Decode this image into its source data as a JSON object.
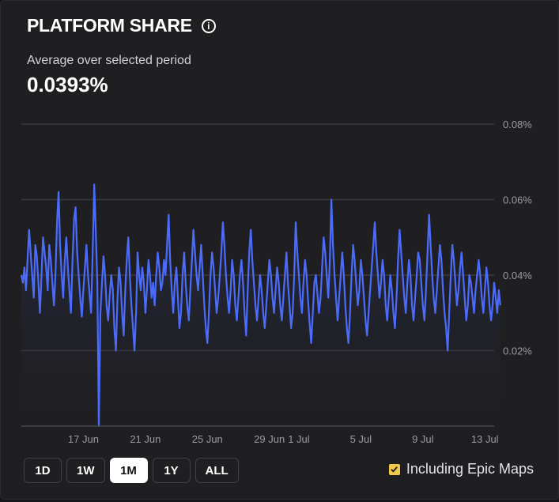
{
  "header": {
    "title": "PLATFORM SHARE",
    "info_icon": "info-icon"
  },
  "summary": {
    "label": "Average over selected period",
    "value": "0.0393%"
  },
  "colors": {
    "line": "#4b6bfb",
    "grid": "#3a3a40",
    "axis_text": "#9a9aa2",
    "accent": "#f2c94c"
  },
  "range_buttons": [
    {
      "label": "1D",
      "active": false
    },
    {
      "label": "1W",
      "active": false
    },
    {
      "label": "1M",
      "active": true
    },
    {
      "label": "1Y",
      "active": false
    },
    {
      "label": "ALL",
      "active": false
    }
  ],
  "epic_maps": {
    "label": "Including Epic Maps",
    "checked": true
  },
  "chart_data": {
    "type": "area",
    "title": "PLATFORM SHARE",
    "xlabel": "",
    "ylabel": "",
    "ylim": [
      0,
      0.08
    ],
    "y_ticks": [
      {
        "value": 0.08,
        "label": "0.08%"
      },
      {
        "value": 0.06,
        "label": "0.06%"
      },
      {
        "value": 0.04,
        "label": "0.04%"
      },
      {
        "value": 0.02,
        "label": "0.02%"
      }
    ],
    "xlim": [
      0,
      30.5
    ],
    "x_ticks": [
      {
        "value": 4.0,
        "label": "17 Jun"
      },
      {
        "value": 8.0,
        "label": "21 Jun"
      },
      {
        "value": 12.0,
        "label": "25 Jun"
      },
      {
        "value": 16.0,
        "label": "29 Jun"
      },
      {
        "value": 17.9,
        "label": "1 Jul"
      },
      {
        "value": 21.9,
        "label": "5 Jul"
      },
      {
        "value": 25.9,
        "label": "9 Jul"
      },
      {
        "value": 29.9,
        "label": "13 Jul"
      }
    ],
    "series": [
      {
        "name": "Platform share (%)",
        "x_step_days": 0.1,
        "values": [
          0.04,
          0.038,
          0.042,
          0.036,
          0.044,
          0.052,
          0.046,
          0.04,
          0.034,
          0.048,
          0.045,
          0.038,
          0.03,
          0.04,
          0.05,
          0.046,
          0.042,
          0.036,
          0.048,
          0.044,
          0.038,
          0.032,
          0.04,
          0.054,
          0.062,
          0.048,
          0.04,
          0.034,
          0.044,
          0.05,
          0.042,
          0.036,
          0.03,
          0.044,
          0.055,
          0.058,
          0.046,
          0.04,
          0.034,
          0.029,
          0.036,
          0.042,
          0.048,
          0.04,
          0.035,
          0.03,
          0.046,
          0.064,
          0.052,
          0.038,
          0.0,
          0.03,
          0.038,
          0.045,
          0.04,
          0.032,
          0.028,
          0.035,
          0.04,
          0.036,
          0.026,
          0.02,
          0.034,
          0.042,
          0.038,
          0.03,
          0.024,
          0.036,
          0.044,
          0.05,
          0.04,
          0.032,
          0.026,
          0.02,
          0.03,
          0.046,
          0.04,
          0.036,
          0.042,
          0.038,
          0.03,
          0.036,
          0.044,
          0.04,
          0.034,
          0.038,
          0.032,
          0.04,
          0.046,
          0.042,
          0.036,
          0.038,
          0.044,
          0.04,
          0.048,
          0.056,
          0.044,
          0.036,
          0.03,
          0.038,
          0.042,
          0.034,
          0.026,
          0.03,
          0.04,
          0.046,
          0.038,
          0.032,
          0.028,
          0.036,
          0.044,
          0.052,
          0.046,
          0.04,
          0.036,
          0.042,
          0.048,
          0.04,
          0.032,
          0.026,
          0.022,
          0.03,
          0.04,
          0.046,
          0.042,
          0.036,
          0.03,
          0.034,
          0.04,
          0.046,
          0.054,
          0.048,
          0.04,
          0.034,
          0.03,
          0.036,
          0.044,
          0.04,
          0.032,
          0.028,
          0.034,
          0.04,
          0.044,
          0.038,
          0.03,
          0.024,
          0.036,
          0.046,
          0.052,
          0.044,
          0.038,
          0.032,
          0.028,
          0.034,
          0.04,
          0.036,
          0.03,
          0.026,
          0.032,
          0.038,
          0.044,
          0.04,
          0.034,
          0.03,
          0.036,
          0.042,
          0.038,
          0.032,
          0.028,
          0.034,
          0.04,
          0.046,
          0.038,
          0.032,
          0.026,
          0.03,
          0.04,
          0.054,
          0.046,
          0.04,
          0.034,
          0.03,
          0.038,
          0.044,
          0.04,
          0.033,
          0.027,
          0.022,
          0.03,
          0.038,
          0.04,
          0.035,
          0.03,
          0.034,
          0.042,
          0.05,
          0.046,
          0.04,
          0.034,
          0.044,
          0.06,
          0.048,
          0.04,
          0.034,
          0.028,
          0.034,
          0.04,
          0.046,
          0.04,
          0.032,
          0.026,
          0.022,
          0.03,
          0.04,
          0.048,
          0.044,
          0.038,
          0.032,
          0.036,
          0.044,
          0.04,
          0.034,
          0.028,
          0.024,
          0.03,
          0.036,
          0.042,
          0.048,
          0.054,
          0.046,
          0.04,
          0.034,
          0.038,
          0.044,
          0.04,
          0.032,
          0.028,
          0.034,
          0.04,
          0.036,
          0.03,
          0.026,
          0.034,
          0.044,
          0.052,
          0.046,
          0.04,
          0.034,
          0.03,
          0.038,
          0.044,
          0.04,
          0.032,
          0.028,
          0.034,
          0.04,
          0.046,
          0.044,
          0.038,
          0.032,
          0.028,
          0.036,
          0.046,
          0.056,
          0.048,
          0.04,
          0.034,
          0.03,
          0.036,
          0.042,
          0.048,
          0.044,
          0.036,
          0.03,
          0.026,
          0.02,
          0.03,
          0.04,
          0.048,
          0.044,
          0.038,
          0.032,
          0.036,
          0.042,
          0.046,
          0.04,
          0.034,
          0.028,
          0.032,
          0.04,
          0.038,
          0.034,
          0.03,
          0.036,
          0.04,
          0.044,
          0.04,
          0.034,
          0.03,
          0.036,
          0.042,
          0.038,
          0.032,
          0.028,
          0.032,
          0.038,
          0.034,
          0.03,
          0.036,
          0.032
        ]
      }
    ]
  }
}
